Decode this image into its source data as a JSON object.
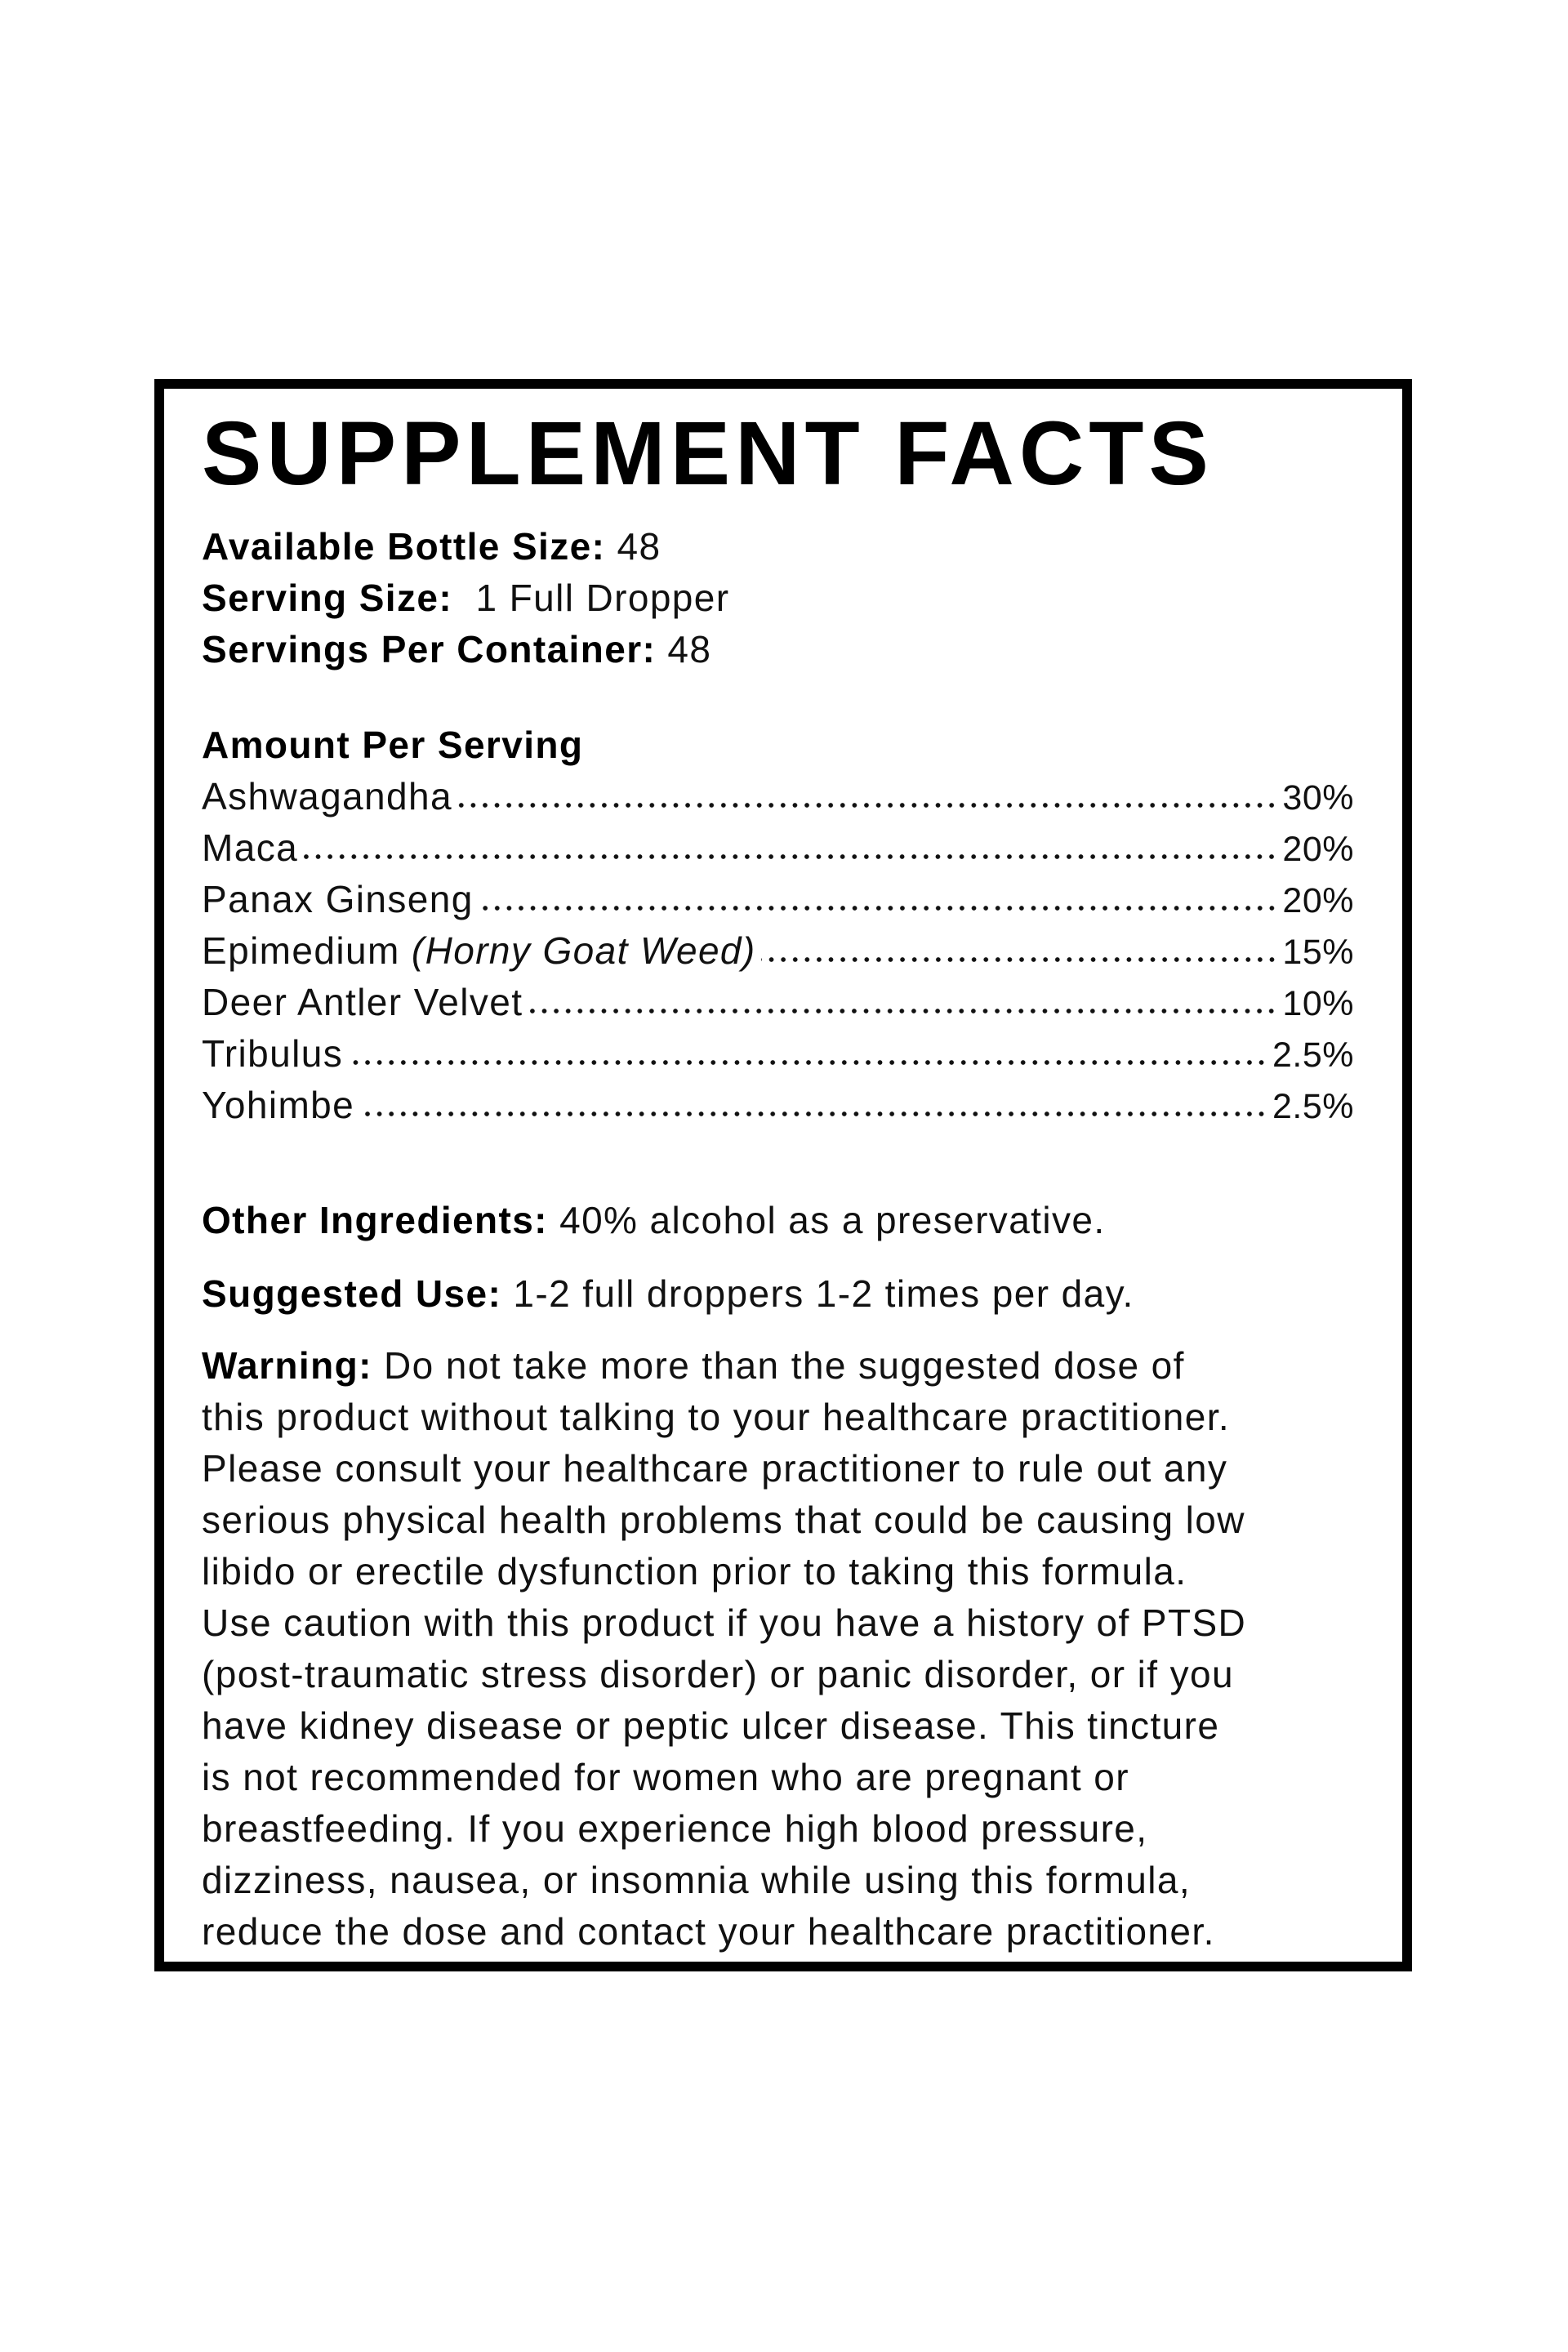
{
  "label": {
    "title": "SUPPLEMENT FACTS",
    "info": [
      {
        "label": "Available Bottle Size:",
        "value": " 48"
      },
      {
        "label": "Serving Size:",
        "value": "  1 Full Dropper"
      },
      {
        "label": "Servings Per Container:",
        "value": " 48"
      }
    ],
    "amount_heading": "Amount Per Serving",
    "ingredients": [
      {
        "name": "Ashwagandha",
        "note": "",
        "percent": "30%"
      },
      {
        "name": "Maca",
        "note": "",
        "percent": "20%"
      },
      {
        "name": "Panax Ginseng",
        "note": "",
        "percent": "20%"
      },
      {
        "name": "Epimedium ",
        "note": "(Horny Goat Weed)",
        "percent": "15%"
      },
      {
        "name": "Deer Antler Velvet",
        "note": "",
        "percent": "10%"
      },
      {
        "name": "Tribulus",
        "note": "",
        "percent": "2.5%"
      },
      {
        "name": "Yohimbe",
        "note": "",
        "percent": "2.5%"
      }
    ],
    "other_ingredients": {
      "label": "Other Ingredients:",
      "text": " 40% alcohol as a preservative."
    },
    "suggested_use": {
      "label": "Suggested Use:",
      "text": " 1-2 full droppers 1-2 times per day."
    },
    "warning": {
      "label": "Warning:",
      "lines": [
        " Do not take more than the suggested dose of",
        "this product without talking to your healthcare practitioner.",
        "Please consult your healthcare practitioner to rule out any",
        "serious physical health problems that could be causing low",
        "libido or erectile dysfunction prior to taking this formula.",
        "Use caution with this product if you have a history of PTSD",
        "(post-traumatic stress disorder) or panic disorder, or if you",
        "have kidney disease or peptic ulcer disease. This tincture",
        "is not recommended for women who are pregnant or",
        "breastfeeding. If you experience high blood pressure,",
        "dizziness, nausea, or insomnia while using this formula,",
        "reduce the dose and contact your healthcare practitioner."
      ]
    },
    "colors": {
      "border": "#000000",
      "text": "#111111",
      "background": "#ffffff"
    }
  }
}
